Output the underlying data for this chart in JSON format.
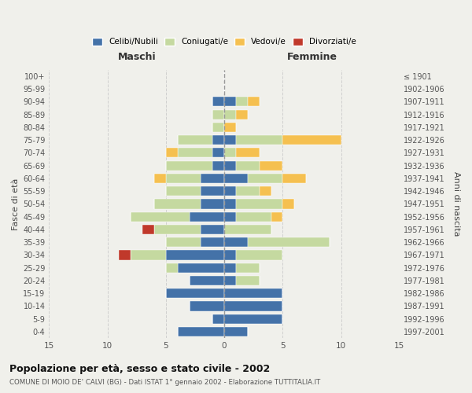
{
  "age_groups": [
    "0-4",
    "5-9",
    "10-14",
    "15-19",
    "20-24",
    "25-29",
    "30-34",
    "35-39",
    "40-44",
    "45-49",
    "50-54",
    "55-59",
    "60-64",
    "65-69",
    "70-74",
    "75-79",
    "80-84",
    "85-89",
    "90-94",
    "95-99",
    "100+"
  ],
  "birth_years": [
    "1997-2001",
    "1992-1996",
    "1987-1991",
    "1982-1986",
    "1977-1981",
    "1972-1976",
    "1967-1971",
    "1962-1966",
    "1957-1961",
    "1952-1956",
    "1947-1951",
    "1942-1946",
    "1937-1941",
    "1932-1936",
    "1927-1931",
    "1922-1926",
    "1917-1921",
    "1912-1916",
    "1907-1911",
    "1902-1906",
    "≤ 1901"
  ],
  "male": {
    "celibi": [
      4,
      1,
      3,
      5,
      3,
      4,
      5,
      2,
      2,
      3,
      2,
      2,
      2,
      1,
      1,
      1,
      0,
      0,
      1,
      0,
      0
    ],
    "coniugati": [
      0,
      0,
      0,
      0,
      0,
      1,
      3,
      3,
      4,
      5,
      4,
      3,
      3,
      4,
      3,
      3,
      1,
      1,
      0,
      0,
      0
    ],
    "vedovi": [
      0,
      0,
      0,
      0,
      0,
      0,
      0,
      0,
      0,
      0,
      0,
      0,
      1,
      0,
      1,
      0,
      0,
      0,
      0,
      0,
      0
    ],
    "divorziati": [
      0,
      0,
      0,
      0,
      0,
      0,
      1,
      0,
      1,
      0,
      0,
      0,
      0,
      0,
      0,
      0,
      0,
      0,
      0,
      0,
      0
    ]
  },
  "female": {
    "nubili": [
      2,
      5,
      5,
      5,
      1,
      1,
      1,
      2,
      0,
      1,
      1,
      1,
      2,
      1,
      0,
      1,
      0,
      0,
      1,
      0,
      0
    ],
    "coniugate": [
      0,
      0,
      0,
      0,
      2,
      2,
      4,
      7,
      4,
      3,
      4,
      2,
      3,
      2,
      1,
      4,
      0,
      1,
      1,
      0,
      0
    ],
    "vedove": [
      0,
      0,
      0,
      0,
      0,
      0,
      0,
      0,
      0,
      1,
      1,
      1,
      2,
      2,
      2,
      5,
      1,
      1,
      1,
      0,
      0
    ],
    "divorziate": [
      0,
      0,
      0,
      0,
      0,
      0,
      0,
      0,
      0,
      0,
      0,
      0,
      0,
      0,
      0,
      0,
      0,
      0,
      0,
      0,
      0
    ]
  },
  "color_celibi": "#4472a8",
  "color_coniugati": "#c5d9a0",
  "color_vedovi": "#f5c050",
  "color_divorziati": "#c0392b",
  "title": "Popolazione per età, sesso e stato civile - 2002",
  "subtitle": "COMUNE DI MOIO DE' CALVI (BG) - Dati ISTAT 1° gennaio 2002 - Elaborazione TUTTITALIA.IT",
  "ylabel_left": "Fasce di età",
  "ylabel_right": "Anni di nascita",
  "xlabel_left": "Maschi",
  "xlabel_right": "Femmine",
  "xlim": 15,
  "bg_color": "#f0f0eb",
  "grid_color": "#cccccc"
}
